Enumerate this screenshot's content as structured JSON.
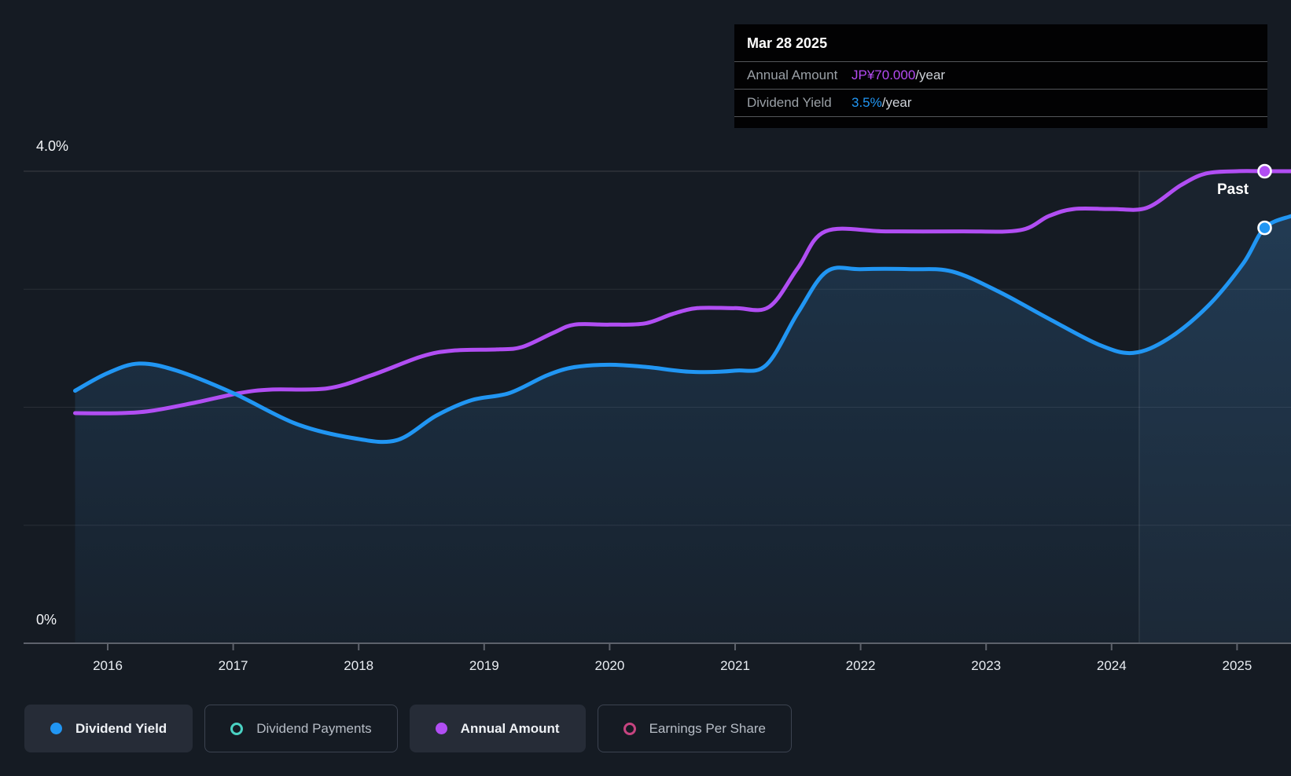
{
  "tooltip": {
    "date": "Mar 28 2025",
    "rows": [
      {
        "label": "Annual Amount",
        "value": "JP¥70.000",
        "suffix": "/year",
        "color": "#b44bf2"
      },
      {
        "label": "Dividend Yield",
        "value": "3.5%",
        "suffix": "/year",
        "color": "#2196f3"
      }
    ]
  },
  "axis": {
    "y_top_label": "4.0%",
    "y_bottom_label": "0%",
    "year_labels": [
      "2016",
      "2017",
      "2018",
      "2019",
      "2020",
      "2021",
      "2022",
      "2023",
      "2024",
      "2025"
    ]
  },
  "past_label": "Past",
  "legend": {
    "items": [
      {
        "label": "Dividend Yield",
        "marker": "dot",
        "color": "#2196f3",
        "active": true
      },
      {
        "label": "Dividend Payments",
        "marker": "ring",
        "color": "#4ad2c3",
        "active": false
      },
      {
        "label": "Annual Amount",
        "marker": "dot",
        "color": "#b14ef3",
        "active": true
      },
      {
        "label": "Earnings Per Share",
        "marker": "ring",
        "color": "#c64480",
        "active": false
      }
    ]
  },
  "colors": {
    "background": "#151b23",
    "dividend_yield_line": "#2196f3",
    "annual_amount_line": "#b14ef3",
    "tooltip_background": "#020203",
    "active_button_background": "#262c37",
    "axis_line": "#5d626b",
    "axis_text": "#e9edf2"
  },
  "chart_data": {
    "type": "line",
    "title": "Dividend history (yield and annual amount)",
    "x_axis": {
      "unit": "year",
      "min": 2015.74,
      "max": 2025.43,
      "ticks": [
        2016,
        2017,
        2018,
        2019,
        2020,
        2021,
        2022,
        2023,
        2024,
        2025
      ]
    },
    "y_axis": {
      "unit": "percent",
      "min": 0,
      "max": 4.35,
      "gridlines_pct": [
        1,
        2,
        3,
        4
      ],
      "top_label": "4.0%",
      "bottom_label": "0%"
    },
    "past_region_start_year": 2024.22,
    "marker_year": 2025.22,
    "legend_position": "bottom",
    "grid": true,
    "series": [
      {
        "name": "Dividend Yield",
        "color": "#2196f3",
        "area_fill": true,
        "end_label": "3.5%/year",
        "marker_value_pct": 3.52,
        "points": [
          [
            2015.74,
            2.14
          ],
          [
            2016.0,
            2.29
          ],
          [
            2016.25,
            2.37
          ],
          [
            2016.55,
            2.31
          ],
          [
            2017.0,
            2.12
          ],
          [
            2017.5,
            1.86
          ],
          [
            2017.95,
            1.74
          ],
          [
            2018.3,
            1.72
          ],
          [
            2018.62,
            1.93
          ],
          [
            2018.9,
            2.06
          ],
          [
            2019.2,
            2.12
          ],
          [
            2019.5,
            2.27
          ],
          [
            2019.72,
            2.34
          ],
          [
            2020.0,
            2.36
          ],
          [
            2020.3,
            2.34
          ],
          [
            2020.65,
            2.3
          ],
          [
            2021.0,
            2.31
          ],
          [
            2021.25,
            2.36
          ],
          [
            2021.5,
            2.8
          ],
          [
            2021.73,
            3.15
          ],
          [
            2022.0,
            3.17
          ],
          [
            2022.4,
            3.17
          ],
          [
            2022.73,
            3.15
          ],
          [
            2023.1,
            2.98
          ],
          [
            2023.5,
            2.75
          ],
          [
            2023.9,
            2.53
          ],
          [
            2024.17,
            2.46
          ],
          [
            2024.45,
            2.58
          ],
          [
            2024.77,
            2.86
          ],
          [
            2025.05,
            3.22
          ],
          [
            2025.22,
            3.52
          ],
          [
            2025.43,
            3.62
          ]
        ]
      },
      {
        "name": "Annual Amount",
        "color": "#b14ef3",
        "area_fill": false,
        "end_label": "JP¥70.000/year",
        "marker_value_pct": 4.0,
        "scale_note": "plotted on yield axis; 4.0% position = JP¥70.000/year",
        "jpy_levels_estimated": [
          34,
          37.5,
          43.5,
          47,
          50,
          61,
          64.5,
          70
        ],
        "points": [
          [
            2015.74,
            1.95
          ],
          [
            2016.1,
            1.95
          ],
          [
            2016.35,
            1.97
          ],
          [
            2016.7,
            2.04
          ],
          [
            2017.05,
            2.12
          ],
          [
            2017.3,
            2.15
          ],
          [
            2017.75,
            2.16
          ],
          [
            2018.1,
            2.27
          ],
          [
            2018.5,
            2.43
          ],
          [
            2018.75,
            2.48
          ],
          [
            2019.1,
            2.49
          ],
          [
            2019.3,
            2.51
          ],
          [
            2019.55,
            2.63
          ],
          [
            2019.72,
            2.7
          ],
          [
            2020.0,
            2.7
          ],
          [
            2020.28,
            2.71
          ],
          [
            2020.5,
            2.79
          ],
          [
            2020.7,
            2.84
          ],
          [
            2021.0,
            2.84
          ],
          [
            2021.27,
            2.85
          ],
          [
            2021.5,
            3.18
          ],
          [
            2021.72,
            3.49
          ],
          [
            2022.2,
            3.49
          ],
          [
            2022.8,
            3.49
          ],
          [
            2023.27,
            3.5
          ],
          [
            2023.5,
            3.62
          ],
          [
            2023.7,
            3.68
          ],
          [
            2024.0,
            3.68
          ],
          [
            2024.28,
            3.69
          ],
          [
            2024.55,
            3.88
          ],
          [
            2024.75,
            3.98
          ],
          [
            2025.0,
            4.0
          ],
          [
            2025.22,
            4.0
          ],
          [
            2025.43,
            4.0
          ]
        ]
      }
    ]
  }
}
